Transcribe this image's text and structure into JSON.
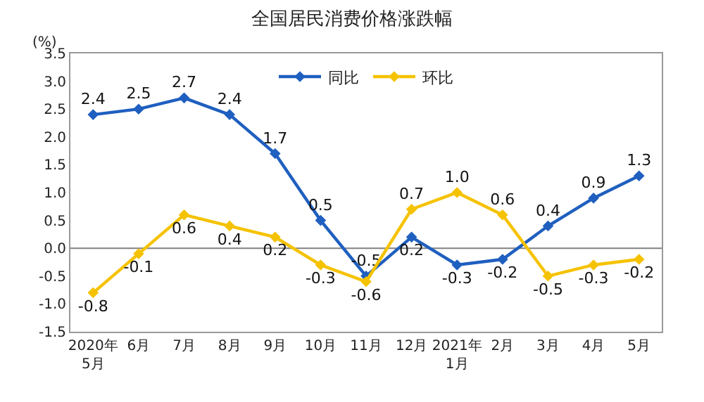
{
  "chart_data": {
    "type": "line",
    "title": "全国居民消费价格涨跌幅",
    "ylabel": "(%)",
    "categories": [
      "2020年\n5月",
      "6月",
      "7月",
      "8月",
      "9月",
      "10月",
      "11月",
      "12月",
      "2021年\n1月",
      "2月",
      "3月",
      "4月",
      "5月"
    ],
    "series": [
      {
        "name": "同比",
        "color": "#1f5fbf",
        "values": [
          2.4,
          2.5,
          2.7,
          2.4,
          1.7,
          0.5,
          -0.5,
          0.2,
          -0.3,
          -0.2,
          0.4,
          0.9,
          1.3
        ],
        "value_labels": [
          "2.4",
          "2.5",
          "2.7",
          "2.4",
          "1.7",
          "0.5",
          "-0.5",
          "0.2",
          "-0.3",
          "-0.2",
          "0.4",
          "0.9",
          "1.3"
        ]
      },
      {
        "name": "环比",
        "color": "#f5c200",
        "values": [
          -0.8,
          -0.1,
          0.6,
          0.4,
          0.2,
          -0.3,
          -0.6,
          0.7,
          1.0,
          0.6,
          -0.5,
          -0.3,
          -0.2
        ],
        "value_labels": [
          "-0.8",
          "-0.1",
          "0.6",
          "0.4",
          "0.2",
          "-0.3",
          "-0.6",
          "0.7",
          "1.0",
          "0.6",
          "-0.5",
          "-0.3",
          "-0.2"
        ]
      }
    ],
    "ylim": [
      -1.5,
      3.5
    ],
    "yticks": [
      -1.5,
      {
        "value": -1,
        "label": "-1.0"
      },
      -0.5,
      {
        "value": 0,
        "label": "0.0"
      },
      0.5,
      {
        "value": 1,
        "label": "1.0"
      },
      1.5,
      {
        "value": 2,
        "label": "2.0"
      },
      2.5,
      {
        "value": 3,
        "label": "3.0"
      },
      3.5
    ],
    "ref_lines": [
      {
        "axis": "y",
        "value": 0,
        "color": "#808080"
      }
    ],
    "legend": "top",
    "grid": false,
    "marker": "diamond"
  }
}
